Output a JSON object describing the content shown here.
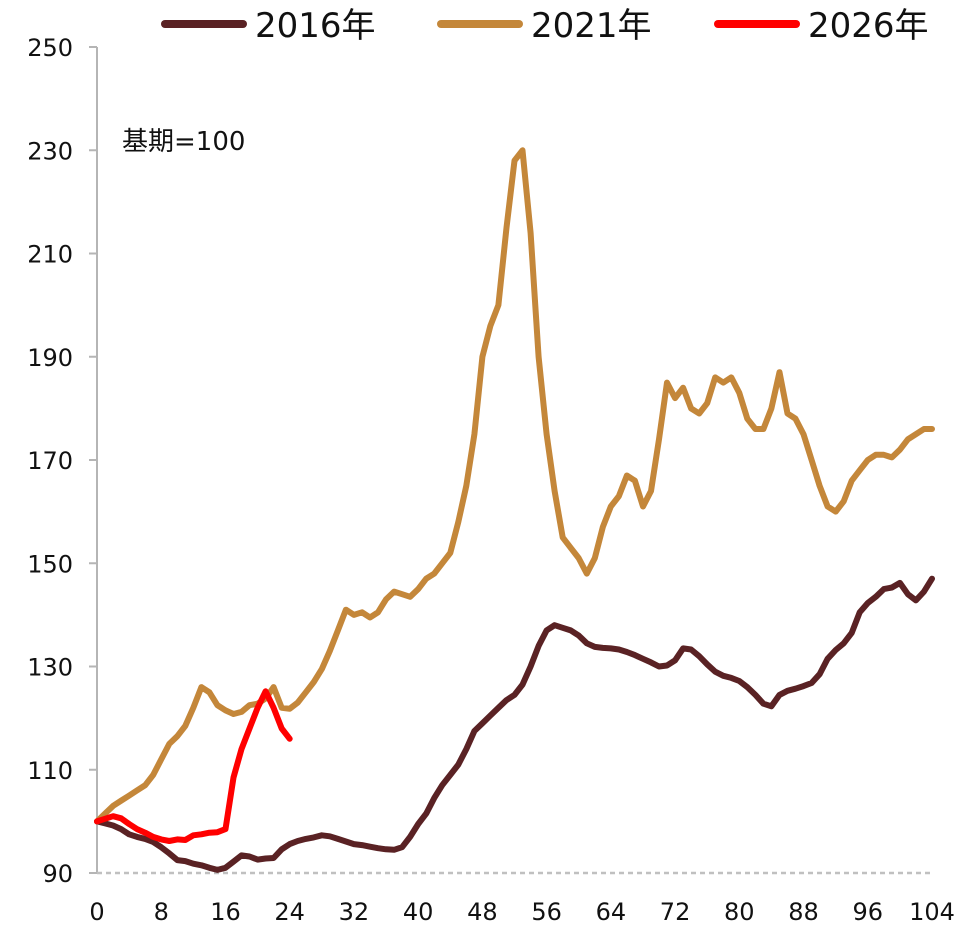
{
  "chart_data": {
    "type": "line",
    "annotation": "基期=100",
    "ylim": [
      90,
      250
    ],
    "xlim": [
      0,
      104
    ],
    "y_ticks": [
      90,
      110,
      130,
      150,
      170,
      190,
      210,
      230,
      250
    ],
    "x_ticks": [
      0,
      8,
      16,
      24,
      32,
      40,
      48,
      56,
      64,
      72,
      80,
      88,
      96,
      104
    ],
    "legend_position": "top",
    "grid": false,
    "series": [
      {
        "name": "2016年",
        "color": "#5a2224",
        "points": [
          [
            0,
            100
          ],
          [
            1,
            99.6
          ],
          [
            2,
            99.2
          ],
          [
            3,
            98.5
          ],
          [
            4,
            97.5
          ],
          [
            5,
            97
          ],
          [
            6,
            96.6
          ],
          [
            7,
            96
          ],
          [
            8,
            95
          ],
          [
            9,
            93.8
          ],
          [
            10,
            92.5
          ],
          [
            11,
            92.3
          ],
          [
            12,
            91.8
          ],
          [
            13,
            91.5
          ],
          [
            14,
            91
          ],
          [
            15,
            90.6
          ],
          [
            16,
            91
          ],
          [
            17,
            92.2
          ],
          [
            18,
            93.4
          ],
          [
            19,
            93.2
          ],
          [
            20,
            92.6
          ],
          [
            21,
            92.8
          ],
          [
            22,
            92.9
          ],
          [
            23,
            94.6
          ],
          [
            24,
            95.6
          ],
          [
            25,
            96.2
          ],
          [
            26,
            96.6
          ],
          [
            27,
            96.9
          ],
          [
            28,
            97.3
          ],
          [
            29,
            97.1
          ],
          [
            30,
            96.6
          ],
          [
            31,
            96.1
          ],
          [
            32,
            95.6
          ],
          [
            33,
            95.4
          ],
          [
            34,
            95.1
          ],
          [
            35,
            94.8
          ],
          [
            36,
            94.6
          ],
          [
            37,
            94.5
          ],
          [
            38,
            95
          ],
          [
            39,
            97
          ],
          [
            40,
            99.5
          ],
          [
            41,
            101.5
          ],
          [
            42,
            104.5
          ],
          [
            43,
            107
          ],
          [
            44,
            109
          ],
          [
            45,
            111
          ],
          [
            46,
            114
          ],
          [
            47,
            117.5
          ],
          [
            48,
            119
          ],
          [
            49,
            120.5
          ],
          [
            50,
            122
          ],
          [
            51,
            123.5
          ],
          [
            52,
            124.5
          ],
          [
            53,
            126.5
          ],
          [
            54,
            130
          ],
          [
            55,
            134
          ],
          [
            56,
            137
          ],
          [
            57,
            138
          ],
          [
            58,
            137.5
          ],
          [
            59,
            137
          ],
          [
            60,
            136
          ],
          [
            61,
            134.5
          ],
          [
            62,
            133.8
          ],
          [
            63,
            133.6
          ],
          [
            64,
            133.5
          ],
          [
            65,
            133.3
          ],
          [
            66,
            132.8
          ],
          [
            67,
            132.2
          ],
          [
            68,
            131.5
          ],
          [
            69,
            130.8
          ],
          [
            70,
            130
          ],
          [
            71,
            130.2
          ],
          [
            72,
            131.2
          ],
          [
            73,
            133.5
          ],
          [
            74,
            133.3
          ],
          [
            75,
            132
          ],
          [
            76,
            130.4
          ],
          [
            77,
            129
          ],
          [
            78,
            128.2
          ],
          [
            79,
            127.8
          ],
          [
            80,
            127.2
          ],
          [
            81,
            126
          ],
          [
            82,
            124.5
          ],
          [
            83,
            122.8
          ],
          [
            84,
            122.3
          ],
          [
            85,
            124.5
          ],
          [
            86,
            125.3
          ],
          [
            87,
            125.7
          ],
          [
            88,
            126.2
          ],
          [
            89,
            126.8
          ],
          [
            90,
            128.5
          ],
          [
            91,
            131.5
          ],
          [
            92,
            133.2
          ],
          [
            93,
            134.5
          ],
          [
            94,
            136.5
          ],
          [
            95,
            140.5
          ],
          [
            96,
            142.3
          ],
          [
            97,
            143.5
          ],
          [
            98,
            145
          ],
          [
            99,
            145.3
          ],
          [
            100,
            146.2
          ],
          [
            101,
            144
          ],
          [
            102,
            142.8
          ],
          [
            103,
            144.5
          ],
          [
            104,
            147
          ]
        ]
      },
      {
        "name": "2021年",
        "color": "#c4873a",
        "points": [
          [
            0,
            100
          ],
          [
            1,
            101.5
          ],
          [
            2,
            103
          ],
          [
            3,
            104
          ],
          [
            4,
            105
          ],
          [
            5,
            106
          ],
          [
            6,
            107
          ],
          [
            7,
            109
          ],
          [
            8,
            112
          ],
          [
            9,
            115
          ],
          [
            10,
            116.5
          ],
          [
            11,
            118.5
          ],
          [
            12,
            122
          ],
          [
            13,
            126
          ],
          [
            14,
            125
          ],
          [
            15,
            122.5
          ],
          [
            16,
            121.5
          ],
          [
            17,
            120.8
          ],
          [
            18,
            121.2
          ],
          [
            19,
            122.5
          ],
          [
            20,
            122.8
          ],
          [
            21,
            123.8
          ],
          [
            22,
            126
          ],
          [
            23,
            122
          ],
          [
            24,
            121.8
          ],
          [
            25,
            123
          ],
          [
            26,
            125
          ],
          [
            27,
            127
          ],
          [
            28,
            129.5
          ],
          [
            29,
            133
          ],
          [
            30,
            137
          ],
          [
            31,
            141
          ],
          [
            32,
            140
          ],
          [
            33,
            140.5
          ],
          [
            34,
            139.5
          ],
          [
            35,
            140.5
          ],
          [
            36,
            143
          ],
          [
            37,
            144.5
          ],
          [
            38,
            144
          ],
          [
            39,
            143.5
          ],
          [
            40,
            145
          ],
          [
            41,
            147
          ],
          [
            42,
            148
          ],
          [
            43,
            150
          ],
          [
            44,
            152
          ],
          [
            45,
            158
          ],
          [
            46,
            165
          ],
          [
            47,
            175
          ],
          [
            48,
            190
          ],
          [
            49,
            196
          ],
          [
            50,
            200
          ],
          [
            51,
            215
          ],
          [
            52,
            228
          ],
          [
            53,
            230
          ],
          [
            54,
            214
          ],
          [
            55,
            190
          ],
          [
            56,
            175
          ],
          [
            57,
            164
          ],
          [
            58,
            155
          ],
          [
            59,
            153
          ],
          [
            60,
            151
          ],
          [
            61,
            148
          ],
          [
            62,
            151
          ],
          [
            63,
            157
          ],
          [
            64,
            161
          ],
          [
            65,
            163
          ],
          [
            66,
            167
          ],
          [
            67,
            166
          ],
          [
            68,
            161
          ],
          [
            69,
            164
          ],
          [
            70,
            174
          ],
          [
            71,
            185
          ],
          [
            72,
            182
          ],
          [
            73,
            184
          ],
          [
            74,
            180
          ],
          [
            75,
            179
          ],
          [
            76,
            181
          ],
          [
            77,
            186
          ],
          [
            78,
            185
          ],
          [
            79,
            186
          ],
          [
            80,
            183
          ],
          [
            81,
            178
          ],
          [
            82,
            176
          ],
          [
            83,
            176
          ],
          [
            84,
            180
          ],
          [
            85,
            187
          ],
          [
            86,
            179
          ],
          [
            87,
            178
          ],
          [
            88,
            175
          ],
          [
            89,
            170
          ],
          [
            90,
            165
          ],
          [
            91,
            161
          ],
          [
            92,
            160
          ],
          [
            93,
            162
          ],
          [
            94,
            166
          ],
          [
            95,
            168
          ],
          [
            96,
            170
          ],
          [
            97,
            171
          ],
          [
            98,
            171
          ],
          [
            99,
            170.5
          ],
          [
            100,
            172
          ],
          [
            101,
            174
          ],
          [
            102,
            175
          ],
          [
            103,
            176
          ],
          [
            104,
            176
          ]
        ]
      },
      {
        "name": "2026年",
        "color": "#ff0000",
        "points": [
          [
            0,
            100
          ],
          [
            1,
            100.5
          ],
          [
            2,
            101
          ],
          [
            3,
            100.6
          ],
          [
            4,
            99.5
          ],
          [
            5,
            98.5
          ],
          [
            6,
            97.8
          ],
          [
            7,
            97
          ],
          [
            8,
            96.5
          ],
          [
            9,
            96.2
          ],
          [
            10,
            96.5
          ],
          [
            11,
            96.4
          ],
          [
            12,
            97.3
          ],
          [
            13,
            97.5
          ],
          [
            14,
            97.8
          ],
          [
            15,
            97.9
          ],
          [
            16,
            98.5
          ],
          [
            17,
            108.5
          ],
          [
            18,
            114
          ],
          [
            19,
            118
          ],
          [
            20,
            122
          ],
          [
            21,
            125.2
          ],
          [
            22,
            122
          ],
          [
            23,
            118
          ],
          [
            24,
            116
          ]
        ]
      }
    ]
  }
}
